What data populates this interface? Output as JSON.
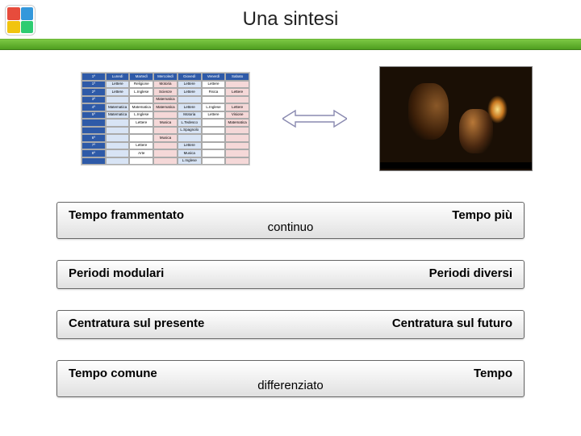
{
  "title": "Una sintesi",
  "logo_colors": [
    "#e74c3c",
    "#3498db",
    "#f1c40f",
    "#2ecc71"
  ],
  "timetable": {
    "header_bg": "#2e5aa8",
    "header_fg": "#ffffff",
    "alt_bg_1": "#d8e4f5",
    "alt_bg_2": "#f5d8d8",
    "alt_bg_3": "#ffffff",
    "headers": [
      "1ª",
      "Lunedì",
      "Martedì",
      "Mercoledì",
      "Giovedì",
      "Venerdì",
      "Sabato"
    ],
    "rows": [
      [
        "1ª",
        "Lettere",
        "Religione",
        "Motoria",
        "Lettere",
        "Lettere",
        ""
      ],
      [
        "2ª",
        "Lettere",
        "L.Inglese",
        "Scienze",
        "Lettere",
        "Fisica",
        "Lettere"
      ],
      [
        "3ª",
        "",
        "",
        "Matematica",
        "",
        "",
        ""
      ],
      [
        "4ª",
        "Matematica",
        "Matematica",
        "Matematica",
        "Lettere",
        "L.Inglese",
        "Lettere"
      ],
      [
        "5ª",
        "Matematica",
        "L.Inglese",
        "",
        "Motoria",
        "Lettere",
        "Visione"
      ],
      [
        "",
        "",
        "Lettere",
        "Musica",
        "L.Tedesco",
        "",
        "Matematica"
      ],
      [
        "",
        "",
        "",
        "",
        "L.Spagnolo",
        "",
        ""
      ],
      [
        "6ª",
        "",
        "",
        "Musica",
        "",
        "",
        ""
      ],
      [
        "7ª",
        "",
        "Lettere",
        "",
        "Lettere",
        "",
        ""
      ],
      [
        "8ª",
        "",
        "Arte",
        "",
        "Musica",
        "",
        ""
      ],
      [
        "",
        "",
        "",
        "",
        "L.Inglese",
        "",
        ""
      ]
    ]
  },
  "arrow_color": "#8a8ab0",
  "comparisons": [
    {
      "left": "Tempo frammentato",
      "right": "Tempo più",
      "center": "continuo"
    },
    {
      "left": "Periodi modulari",
      "right": "Periodi diversi",
      "center": ""
    },
    {
      "left": "Centratura sul presente",
      "right": "Centratura sul futuro",
      "center": ""
    },
    {
      "left": "Tempo comune",
      "right": "Tempo",
      "center": "differenziato"
    }
  ]
}
